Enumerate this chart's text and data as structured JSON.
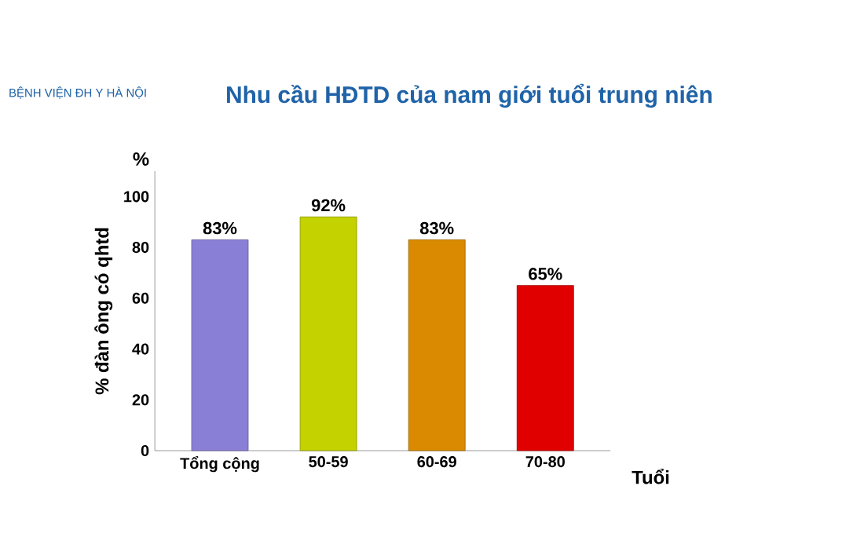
{
  "chart_data": {
    "type": "bar",
    "title": "Nhu cầu HĐTD của nam giới tuổi trung niên",
    "annotations": [
      "BỆNH VIỆN ĐH Y HÀ NỘI",
      "%"
    ],
    "xlabel": "Tuổi",
    "ylabel": "% đàn ông có qhtd",
    "categories": [
      "Tổng cộng",
      "50-59",
      "60-69",
      "70-80"
    ],
    "values": [
      83,
      92,
      83,
      65
    ],
    "value_labels": [
      "83%",
      "92%",
      "83%",
      "65%"
    ],
    "colors": [
      "#8a7fd6",
      "#c4d200",
      "#d98a00",
      "#e00000"
    ],
    "ylim": [
      0,
      110
    ],
    "yticks": [
      0,
      20,
      40,
      60,
      80,
      100
    ],
    "grid": false
  }
}
